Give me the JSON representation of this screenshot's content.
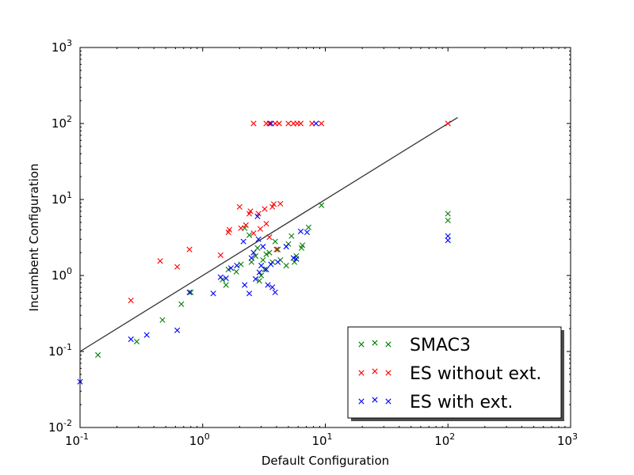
{
  "chart_data": {
    "type": "scatter",
    "xlabel": "Default Configuration",
    "ylabel": "Incumbent Configuration",
    "xscale": "log",
    "yscale": "log",
    "xlim": [
      0.1,
      1000
    ],
    "ylim": [
      0.01,
      1000
    ],
    "xticks": [
      {
        "value": 0.1,
        "base": "10",
        "exp": "-1"
      },
      {
        "value": 1,
        "base": "10",
        "exp": "0"
      },
      {
        "value": 10,
        "base": "10",
        "exp": "1"
      },
      {
        "value": 100,
        "base": "10",
        "exp": "2"
      },
      {
        "value": 1000,
        "base": "10",
        "exp": "3"
      }
    ],
    "yticks": [
      {
        "value": 0.01,
        "base": "10",
        "exp": "-2"
      },
      {
        "value": 0.1,
        "base": "10",
        "exp": "-1"
      },
      {
        "value": 1,
        "base": "10",
        "exp": "0"
      },
      {
        "value": 10,
        "base": "10",
        "exp": "1"
      },
      {
        "value": 100,
        "base": "10",
        "exp": "2"
      },
      {
        "value": 1000,
        "base": "10",
        "exp": "3"
      }
    ],
    "grid": false,
    "legend_position": "bottom-right",
    "reference_line": {
      "x": [
        0.1,
        120
      ],
      "y": [
        0.1,
        120
      ],
      "color": "#333333"
    },
    "marker": "x",
    "series": [
      {
        "name": "SMAC3",
        "color": "#008000",
        "points": [
          [
            0.14,
            0.09
          ],
          [
            0.29,
            0.135
          ],
          [
            0.47,
            0.26
          ],
          [
            0.67,
            0.42
          ],
          [
            0.8,
            0.6
          ],
          [
            1.45,
            0.88
          ],
          [
            1.55,
            0.75
          ],
          [
            1.62,
            1.2
          ],
          [
            1.88,
            1.12
          ],
          [
            2.05,
            1.4
          ],
          [
            2.2,
            4.2
          ],
          [
            2.4,
            3.4
          ],
          [
            2.5,
            1.5
          ],
          [
            2.7,
            1.8
          ],
          [
            2.8,
            2.3
          ],
          [
            2.9,
            0.85
          ],
          [
            3.0,
            1.0
          ],
          [
            3.1,
            1.6
          ],
          [
            3.2,
            1.2
          ],
          [
            3.3,
            1.9
          ],
          [
            3.5,
            2.0
          ],
          [
            3.7,
            1.5
          ],
          [
            3.9,
            2.8
          ],
          [
            4.1,
            2.2
          ],
          [
            4.3,
            1.6
          ],
          [
            4.8,
            1.35
          ],
          [
            5.0,
            2.6
          ],
          [
            5.3,
            3.3
          ],
          [
            5.6,
            1.5
          ],
          [
            5.8,
            1.8
          ],
          [
            6.4,
            2.3
          ],
          [
            6.5,
            2.5
          ],
          [
            7.3,
            4.3
          ],
          [
            9.3,
            8.4
          ],
          [
            100,
            6.5
          ],
          [
            100,
            5.3
          ]
        ]
      },
      {
        "name": "ES without ext.",
        "color": "#ff0000",
        "points": [
          [
            0.26,
            0.47
          ],
          [
            0.45,
            1.55
          ],
          [
            0.62,
            1.3
          ],
          [
            0.78,
            2.2
          ],
          [
            1.4,
            1.85
          ],
          [
            1.62,
            3.7
          ],
          [
            1.65,
            4.0
          ],
          [
            2.0,
            8.0
          ],
          [
            2.05,
            4.2
          ],
          [
            2.25,
            4.6
          ],
          [
            2.4,
            6.5
          ],
          [
            2.45,
            7.0
          ],
          [
            2.6,
            3.6
          ],
          [
            2.85,
            6.5
          ],
          [
            2.95,
            4.1
          ],
          [
            3.2,
            7.5
          ],
          [
            3.3,
            4.8
          ],
          [
            3.5,
            3.2
          ],
          [
            3.7,
            8.0
          ],
          [
            3.8,
            8.7
          ],
          [
            4.0,
            2.2
          ],
          [
            4.3,
            8.8
          ],
          [
            2.6,
            100
          ],
          [
            3.3,
            100
          ],
          [
            3.5,
            100
          ],
          [
            3.9,
            100
          ],
          [
            4.2,
            100
          ],
          [
            5.0,
            100
          ],
          [
            5.5,
            100
          ],
          [
            5.9,
            100
          ],
          [
            6.3,
            100
          ],
          [
            7.8,
            100
          ],
          [
            9.3,
            100
          ],
          [
            100,
            100
          ]
        ]
      },
      {
        "name": "ES with ext.",
        "color": "#0000ff",
        "points": [
          [
            0.1,
            0.04
          ],
          [
            0.26,
            0.145
          ],
          [
            0.35,
            0.165
          ],
          [
            0.62,
            0.19
          ],
          [
            0.78,
            0.6
          ],
          [
            1.22,
            0.58
          ],
          [
            1.4,
            0.95
          ],
          [
            1.55,
            0.92
          ],
          [
            1.7,
            1.25
          ],
          [
            1.9,
            1.35
          ],
          [
            2.15,
            2.8
          ],
          [
            2.2,
            0.75
          ],
          [
            2.4,
            0.58
          ],
          [
            2.5,
            1.7
          ],
          [
            2.6,
            2.0
          ],
          [
            2.7,
            0.9
          ],
          [
            2.8,
            6.0
          ],
          [
            2.85,
            3.0
          ],
          [
            2.9,
            1.1
          ],
          [
            3.0,
            1.35
          ],
          [
            3.1,
            2.4
          ],
          [
            3.3,
            1.2
          ],
          [
            3.4,
            0.75
          ],
          [
            3.6,
            1.4
          ],
          [
            3.7,
            0.7
          ],
          [
            3.9,
            0.6
          ],
          [
            4.1,
            1.5
          ],
          [
            4.8,
            2.4
          ],
          [
            5.5,
            1.7
          ],
          [
            5.8,
            1.65
          ],
          [
            6.3,
            3.8
          ],
          [
            7.1,
            3.7
          ],
          [
            3.6,
            100
          ],
          [
            8.4,
            100
          ],
          [
            100,
            3.3
          ],
          [
            100,
            2.9
          ]
        ]
      }
    ]
  }
}
